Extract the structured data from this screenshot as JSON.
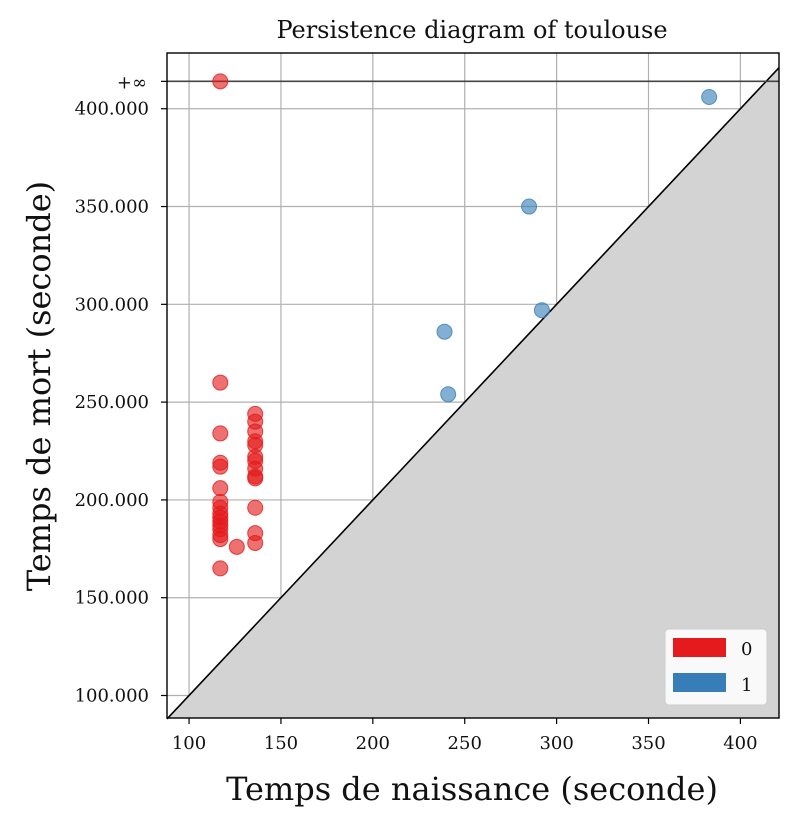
{
  "chart_data": {
    "type": "scatter",
    "title": "Persistence diagram of toulouse",
    "xlabel": "Temps de naissance (seconde)",
    "ylabel": "Temps de mort (seconde)",
    "xlim": [
      88,
      421
    ],
    "ylim": [
      88.5,
      428.5
    ],
    "x_ticks": [
      100,
      150,
      200,
      250,
      300,
      350,
      400
    ],
    "x_tick_labels": [
      "100",
      "150",
      "200",
      "250",
      "300",
      "350",
      "400"
    ],
    "y_ticks": [
      100,
      150,
      200,
      250,
      300,
      350,
      400
    ],
    "y_tick_labels": [
      "100.000",
      "150.000",
      "200.000",
      "250.000",
      "300.000",
      "350.000",
      "400.000"
    ],
    "infinity_label": "+∞",
    "infinity_value": 414,
    "grid": true,
    "legend_position": "bottom-right",
    "diagonal_fill_color": "#d3d3d3",
    "series": [
      {
        "name": "0",
        "color": "#e41a1c",
        "points": [
          [
            117,
            414
          ],
          [
            117,
            260
          ],
          [
            117,
            234
          ],
          [
            117,
            219
          ],
          [
            117,
            217
          ],
          [
            117,
            206
          ],
          [
            117,
            199
          ],
          [
            117,
            196
          ],
          [
            117,
            193
          ],
          [
            117,
            191
          ],
          [
            117,
            189
          ],
          [
            117,
            187
          ],
          [
            117,
            185
          ],
          [
            117,
            182
          ],
          [
            117,
            180
          ],
          [
            117,
            165
          ],
          [
            126,
            176
          ],
          [
            136,
            244
          ],
          [
            136,
            240
          ],
          [
            136,
            235
          ],
          [
            136,
            230
          ],
          [
            136,
            228
          ],
          [
            136,
            222
          ],
          [
            136,
            220
          ],
          [
            136,
            216
          ],
          [
            136,
            212
          ],
          [
            136,
            211
          ],
          [
            136,
            196
          ],
          [
            136,
            183
          ],
          [
            136,
            178
          ]
        ]
      },
      {
        "name": "1",
        "color": "#377eb8",
        "points": [
          [
            383,
            406
          ],
          [
            285,
            350
          ],
          [
            292,
            297
          ],
          [
            239,
            286
          ],
          [
            241,
            254
          ]
        ]
      }
    ]
  }
}
